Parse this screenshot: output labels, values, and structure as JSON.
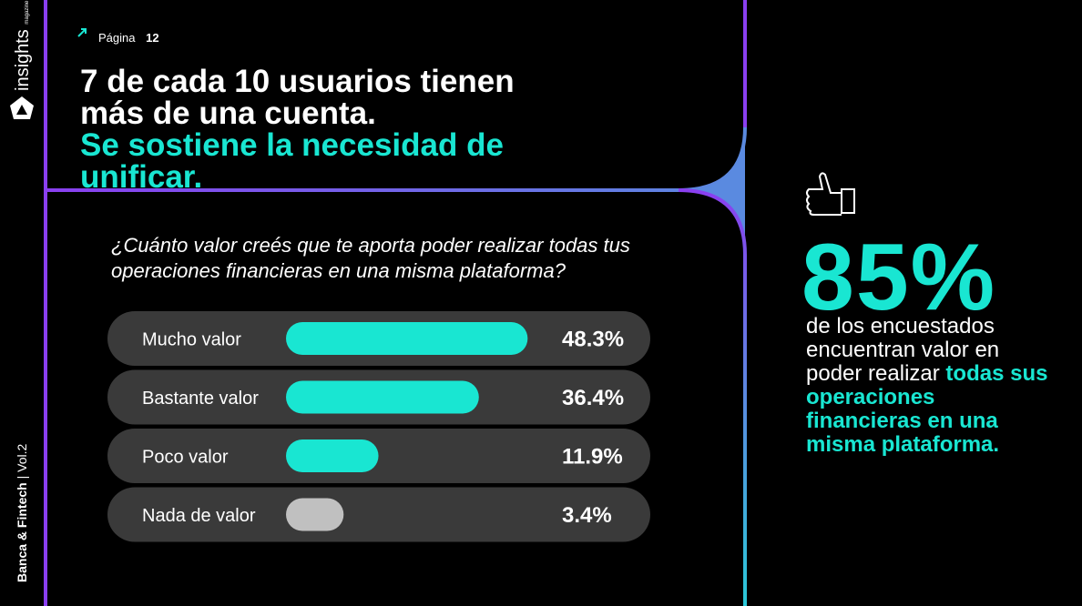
{
  "brand": "insights",
  "brand_sub": "magazine",
  "sidebar": {
    "section": "Banca & Fintech",
    "volume": "Vol.2"
  },
  "page": {
    "label": "Página",
    "number": "12"
  },
  "headline": {
    "lines": [
      "7 de cada 10 usuarios tienen",
      "más de una cuenta."
    ],
    "highlight": [
      "Se sostiene la necesidad de",
      "unificar."
    ]
  },
  "chart_data": {
    "type": "bar",
    "title": "¿Cuánto valor creés que te aporta poder realizar todas tus operaciones financieras en una misma plataforma?",
    "categories": [
      "Mucho valor",
      "Bastante valor",
      "Poco valor",
      "Nada de valor"
    ],
    "values": [
      48.3,
      36.4,
      11.9,
      3.4
    ],
    "value_labels": [
      "48.3%",
      "36.4%",
      "11.9%",
      "3.4%"
    ],
    "colors": [
      "#19e6d2",
      "#19e6d2",
      "#19e6d2",
      "#c0c0c0"
    ]
  },
  "highlight_stat": {
    "value": "85%",
    "text": "de los encuestados encuentran valor en poder realizar",
    "emphasis": "todas sus operaciones financieras en una misma plataforma."
  }
}
